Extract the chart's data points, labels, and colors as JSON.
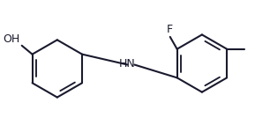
{
  "background_color": "#ffffff",
  "line_color": "#1a1a2e",
  "line_width": 1.5,
  "text_color": "#1a1a2e",
  "font_size": 9,
  "label_F": "F",
  "label_OH": "OH",
  "label_HN": "HN",
  "label_CH3": "–"
}
